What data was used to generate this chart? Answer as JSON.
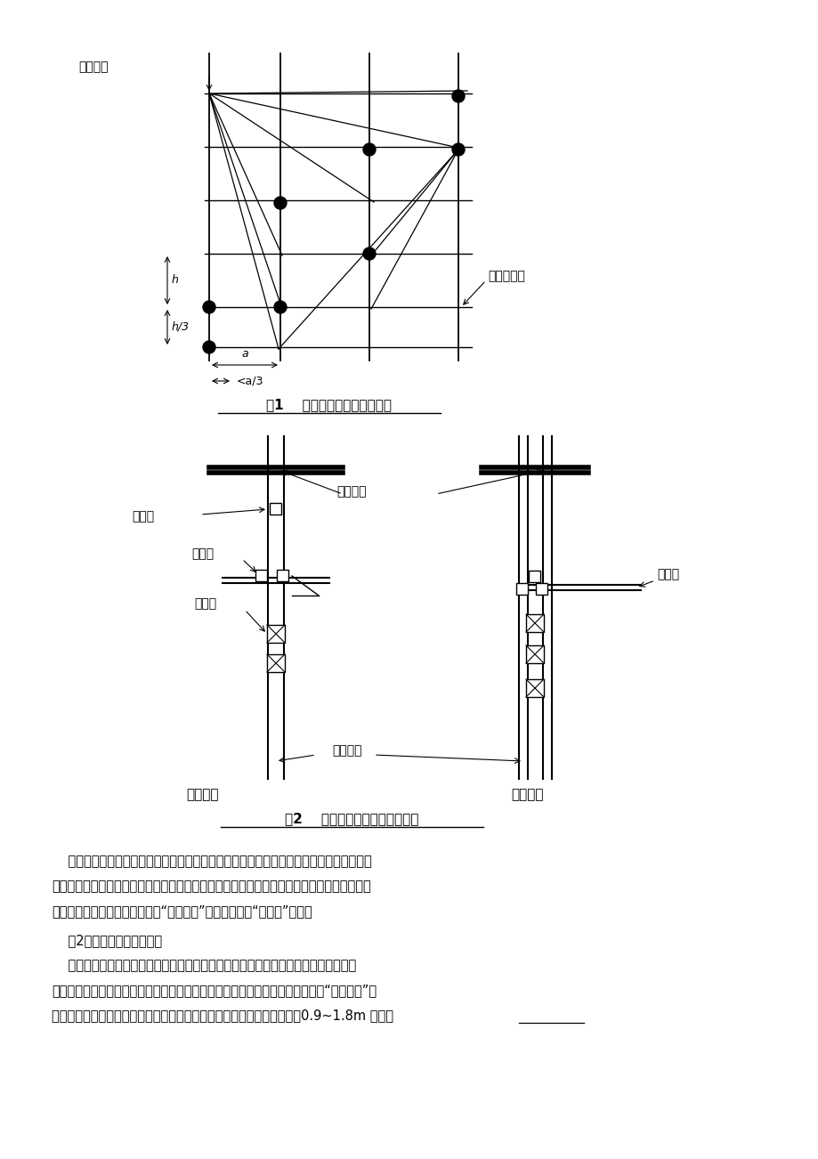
{
  "bg_color": "#ffffff",
  "fig1_title": "图1    立杆、大横杆的接头位置",
  "fig2_title": "图2    单立杆和双立杆的联接方式",
  "fig1_label_lizhan": "立杆接头",
  "fig1_label_daheng": "大横杆接头",
  "fig1_label_h": "h",
  "fig1_label_h3": "h/3",
  "fig1_label_a": "a",
  "fig1_label_a3": "<a/3",
  "fig2_label_duijie": "对接扣",
  "fig2_label_zhijiao": "直角扣",
  "fig2_label_huizhuan": "回转扣",
  "fig2_label_shang": "上单立杆",
  "fig2_label_xia": "下双立杆",
  "fig2_label_daheng2": "大横杆",
  "fig2_label_danjiao": "单杆相接",
  "fig2_label_shuangjiao": "双杆联接",
  "para1_line1": "    方向的双杆布置，以适应水平杆的设置要求；当梁板荷载相差较大时，梁下和板下可承受",
  "para1_line2": "不同的立杆间距，但只宜在一个方向变距、而另一个方向不变距，以确保水平杆件的连续设置",
  "para1_line3": "要求。此外，还有承受粗钢管的“劲性立柱”和粗大钢管的“救命柱”作法。",
  "section2": "    （2）立杆步距的设计要求",
  "para2_line1": "    当架体构造荷载（自重）在立杆不同高度段所引起的轴向力变化不大时，可承受等步",
  "para2_line2": "距设置；当中部有加强层或支架很高、使其轴向力沿高度的变化较大时，可承受“下小上大”的",
  "para2_line3": "变步距设计，但步距的变化亦不宜过多。一般状况下，模板支架的步距以0.9~1.8m 为宜，"
}
